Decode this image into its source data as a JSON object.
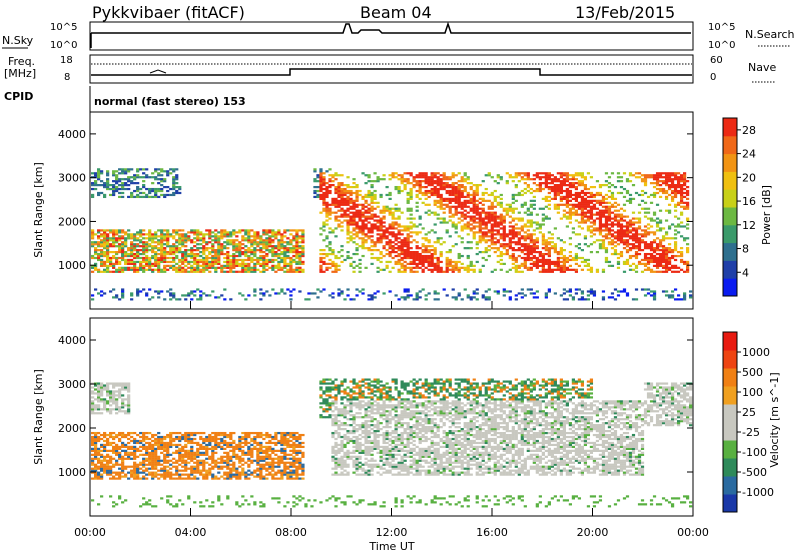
{
  "header": {
    "radar": "Pykkvibaer (fitACF)",
    "beam": "Beam 04",
    "date": "13/Feb/2015"
  },
  "panels": {
    "nsky": {
      "label": "N.Sky",
      "right_label": "N.Search",
      "left_ticks": [
        "10^5",
        "10^0"
      ],
      "right_ticks": [
        "10^5",
        "10^0"
      ]
    },
    "freq": {
      "label_line1": "Freq.",
      "label_line2": "[MHz]",
      "right_label": "Nave",
      "left_ticks": [
        "18",
        "8"
      ],
      "right_ticks": [
        "60",
        "0"
      ]
    },
    "cpid": {
      "label": "CPID",
      "text": "normal (fast stereo) 153"
    }
  },
  "chart_data": [
    {
      "type": "heatmap",
      "name": "power",
      "ylabel": "Slant Range [km]",
      "xlabel": "",
      "ylim": [
        0,
        4500
      ],
      "yticks": [
        1000,
        2000,
        3000,
        4000
      ],
      "colorbar": {
        "label": "Power [dB]",
        "ticks": [
          4,
          8,
          12,
          16,
          20,
          24,
          28
        ],
        "range": [
          0,
          30
        ],
        "colors": [
          "#0a1cf0",
          "#1f3fa8",
          "#2e6f8e",
          "#3a9a6a",
          "#6cb842",
          "#c8d018",
          "#f0c010",
          "#f29414",
          "#f06818",
          "#ec2a14"
        ]
      }
    },
    {
      "type": "heatmap",
      "name": "velocity",
      "ylabel": "Slant Range [km]",
      "xlabel": "Time UT",
      "ylim": [
        0,
        4500
      ],
      "yticks": [
        1000,
        2000,
        3000,
        4000
      ],
      "xticks": [
        "00:00",
        "04:00",
        "08:00",
        "12:00",
        "16:00",
        "20:00",
        "00:00"
      ],
      "colorbar": {
        "label": "Velocity [m s^-1]",
        "ticks": [
          "1000",
          "500",
          "100",
          "25",
          "-25",
          "-100",
          "-500",
          "-1000"
        ],
        "colors": [
          "#1a38a8",
          "#2a6aa0",
          "#2e8a5a",
          "#58b040",
          "#c8c8c0",
          "#c8c8c0",
          "#f0a020",
          "#f08014",
          "#ee4412",
          "#e81a10"
        ]
      }
    }
  ],
  "colors": {
    "frame": "#000000",
    "ground_scatter": "#bebeb4"
  }
}
